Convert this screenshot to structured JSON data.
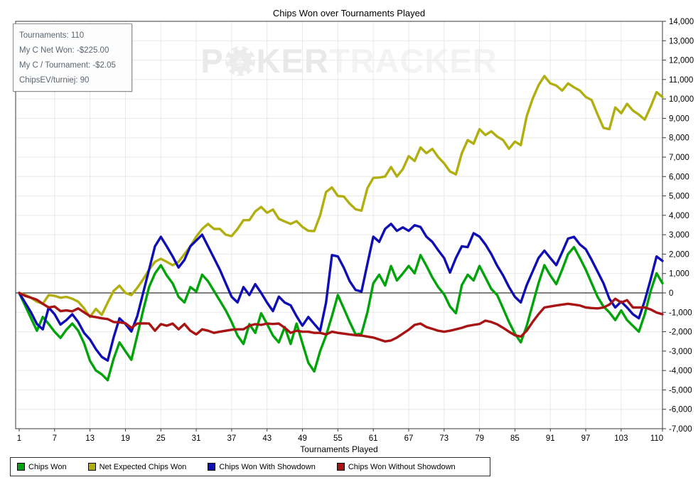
{
  "title": "Chips Won over Tournaments Played",
  "tooltip": {
    "lines": [
      "Tournaments: 110",
      "My C Net Won: -$225.00",
      "My C / Tournament: -$2.05",
      "ChipsEV/turniej: 90"
    ]
  },
  "watermark": {
    "poker_p": "P",
    "poker_ker": "KER",
    "tracker": "TRACKER",
    "chip_glyph": "♠"
  },
  "axes": {
    "x": {
      "label": "Tournaments Played",
      "ticks": [
        "1",
        "7",
        "13",
        "19",
        "25",
        "31",
        "37",
        "43",
        "49",
        "55",
        "61",
        "67",
        "73",
        "79",
        "85",
        "91",
        "97",
        "103",
        "110"
      ]
    },
    "y": {
      "ticks": [
        "14,000",
        "13,000",
        "12,000",
        "11,000",
        "10,000",
        "9,000",
        "8,000",
        "7,000",
        "6,000",
        "5,000",
        "4,000",
        "3,000",
        "2,000",
        "1,000",
        "0",
        "-1,000",
        "-2,000",
        "-3,000",
        "-4,000",
        "-5,000",
        "-6,000",
        "-7,000"
      ]
    }
  },
  "colors": {
    "grid": "#e8e8e8",
    "frame": "#3a3a3a",
    "zero_line": "#000000",
    "tick_text": "#000000"
  },
  "chart_data": {
    "type": "line",
    "title": "Chips Won over Tournaments Played",
    "xlabel": "Tournaments Played",
    "ylabel": "",
    "x_range": [
      1,
      110
    ],
    "ylim": [
      -7000,
      14000
    ],
    "y_tick_step": 1000,
    "grid": true,
    "legend_position": "bottom",
    "y_axis_side": "right",
    "series": [
      {
        "name": "Chips Won",
        "color": "#00a309",
        "values": [
          0,
          -650,
          -1300,
          -1950,
          -1240,
          -1600,
          -2000,
          -2320,
          -1900,
          -1580,
          -1950,
          -2600,
          -3500,
          -4000,
          -4200,
          -4500,
          -3400,
          -2550,
          -3000,
          -3450,
          -2200,
          -900,
          300,
          1000,
          1430,
          900,
          490,
          -200,
          -490,
          300,
          75,
          940,
          600,
          100,
          -400,
          -900,
          -1500,
          -2200,
          -2630,
          -1610,
          -2060,
          -1050,
          -1600,
          -2200,
          -2550,
          -1760,
          -2630,
          -1580,
          -2600,
          -3600,
          -4050,
          -3000,
          -2200,
          -1200,
          -110,
          -800,
          -1500,
          -2140,
          -2100,
          -1000,
          500,
          940,
          380,
          1390,
          640,
          1000,
          1390,
          1010,
          1950,
          1400,
          800,
          300,
          -75,
          -700,
          -1050,
          400,
          940,
          640,
          1390,
          800,
          200,
          -110,
          -800,
          -1500,
          -2100,
          -2550,
          -1700,
          -600,
          500,
          1430,
          900,
          450,
          1200,
          2000,
          2360,
          1800,
          1200,
          500,
          -200,
          -700,
          -1000,
          -1400,
          -900,
          -1400,
          -1700,
          -2000,
          -1100,
          100,
          1010,
          500
        ]
      },
      {
        "name": "Net Expected Chips Won",
        "color": "#b1af10",
        "values": [
          0,
          -100,
          -250,
          -450,
          -560,
          -110,
          -150,
          -250,
          -200,
          -300,
          -450,
          -800,
          -1240,
          -820,
          -1130,
          -500,
          100,
          375,
          0,
          -110,
          260,
          700,
          1200,
          1600,
          1760,
          1600,
          1430,
          1600,
          2000,
          2400,
          2900,
          3300,
          3560,
          3300,
          3300,
          3000,
          2930,
          3300,
          3750,
          3750,
          4200,
          4430,
          4130,
          4300,
          3820,
          3680,
          3560,
          3700,
          3400,
          3200,
          3190,
          4000,
          5200,
          5440,
          5000,
          4970,
          4600,
          4310,
          4240,
          5400,
          5930,
          5950,
          6000,
          6490,
          6000,
          6380,
          7050,
          6800,
          7500,
          7200,
          7430,
          7000,
          6680,
          6260,
          6110,
          7200,
          7880,
          7690,
          8440,
          8140,
          8330,
          8060,
          7880,
          7430,
          7800,
          7620,
          9110,
          10000,
          10700,
          11180,
          10800,
          10690,
          10430,
          10800,
          10600,
          10430,
          10100,
          9940,
          9200,
          8510,
          8440,
          9560,
          9260,
          9750,
          9400,
          9190,
          8930,
          9600,
          10350,
          10100
        ]
      },
      {
        "name": "Chips Won With Showdown",
        "color": "#0f0eb4",
        "values": [
          0,
          -500,
          -1000,
          -1600,
          -1875,
          -750,
          -1100,
          -1630,
          -1400,
          -1100,
          -1500,
          -2060,
          -2400,
          -2900,
          -3300,
          -3490,
          -2300,
          -1310,
          -1600,
          -1990,
          -1200,
          0,
          1200,
          2400,
          2890,
          2400,
          1880,
          1310,
          1700,
          2400,
          2700,
          3000,
          2400,
          1800,
          1200,
          500,
          -200,
          -490,
          300,
          -110,
          450,
          0,
          -500,
          -940,
          -190,
          -500,
          -640,
          -1200,
          -1690,
          -1240,
          -1600,
          -1950,
          -500,
          1950,
          1880,
          1300,
          600,
          150,
          75,
          1500,
          2900,
          2630,
          3300,
          3560,
          3200,
          3380,
          3200,
          3490,
          3400,
          2900,
          2630,
          2200,
          1800,
          1050,
          1800,
          2400,
          2360,
          3080,
          2900,
          2500,
          2000,
          1400,
          900,
          300,
          -200,
          -490,
          400,
          1100,
          1800,
          2180,
          1800,
          1430,
          2100,
          2800,
          2890,
          2500,
          2250,
          1700,
          1100,
          500,
          -300,
          -750,
          -450,
          -750,
          -1100,
          -1310,
          -400,
          700,
          1880,
          1650
        ]
      },
      {
        "name": "Chips Won Without Showdown",
        "color": "#a81313",
        "values": [
          0,
          -150,
          -250,
          -350,
          -560,
          -750,
          -700,
          -940,
          -900,
          -950,
          -800,
          -1000,
          -1200,
          -1250,
          -1310,
          -1350,
          -1500,
          -1520,
          -1560,
          -1800,
          -1580,
          -1570,
          -1580,
          -1950,
          -1610,
          -1690,
          -1580,
          -1875,
          -1600,
          -1950,
          -2140,
          -1875,
          -1950,
          -2060,
          -2000,
          -1950,
          -1900,
          -1875,
          -1875,
          -1690,
          -1610,
          -1650,
          -1580,
          -1600,
          -1580,
          -1800,
          -2060,
          -1950,
          -2000,
          -2000,
          -2060,
          -2060,
          -2140,
          -2000,
          -2060,
          -2100,
          -2140,
          -2180,
          -2200,
          -2250,
          -2300,
          -2400,
          -2500,
          -2450,
          -2300,
          -2100,
          -1900,
          -1650,
          -1580,
          -1760,
          -1850,
          -1950,
          -2000,
          -1950,
          -1875,
          -1800,
          -1700,
          -1650,
          -1600,
          -1430,
          -1500,
          -1620,
          -1800,
          -2000,
          -2180,
          -2250,
          -1950,
          -1500,
          -1100,
          -750,
          -700,
          -650,
          -600,
          -560,
          -600,
          -650,
          -750,
          -780,
          -800,
          -750,
          -600,
          -300,
          -500,
          -375,
          -750,
          -750,
          -750,
          -850,
          -1010,
          -1100
        ]
      }
    ]
  }
}
